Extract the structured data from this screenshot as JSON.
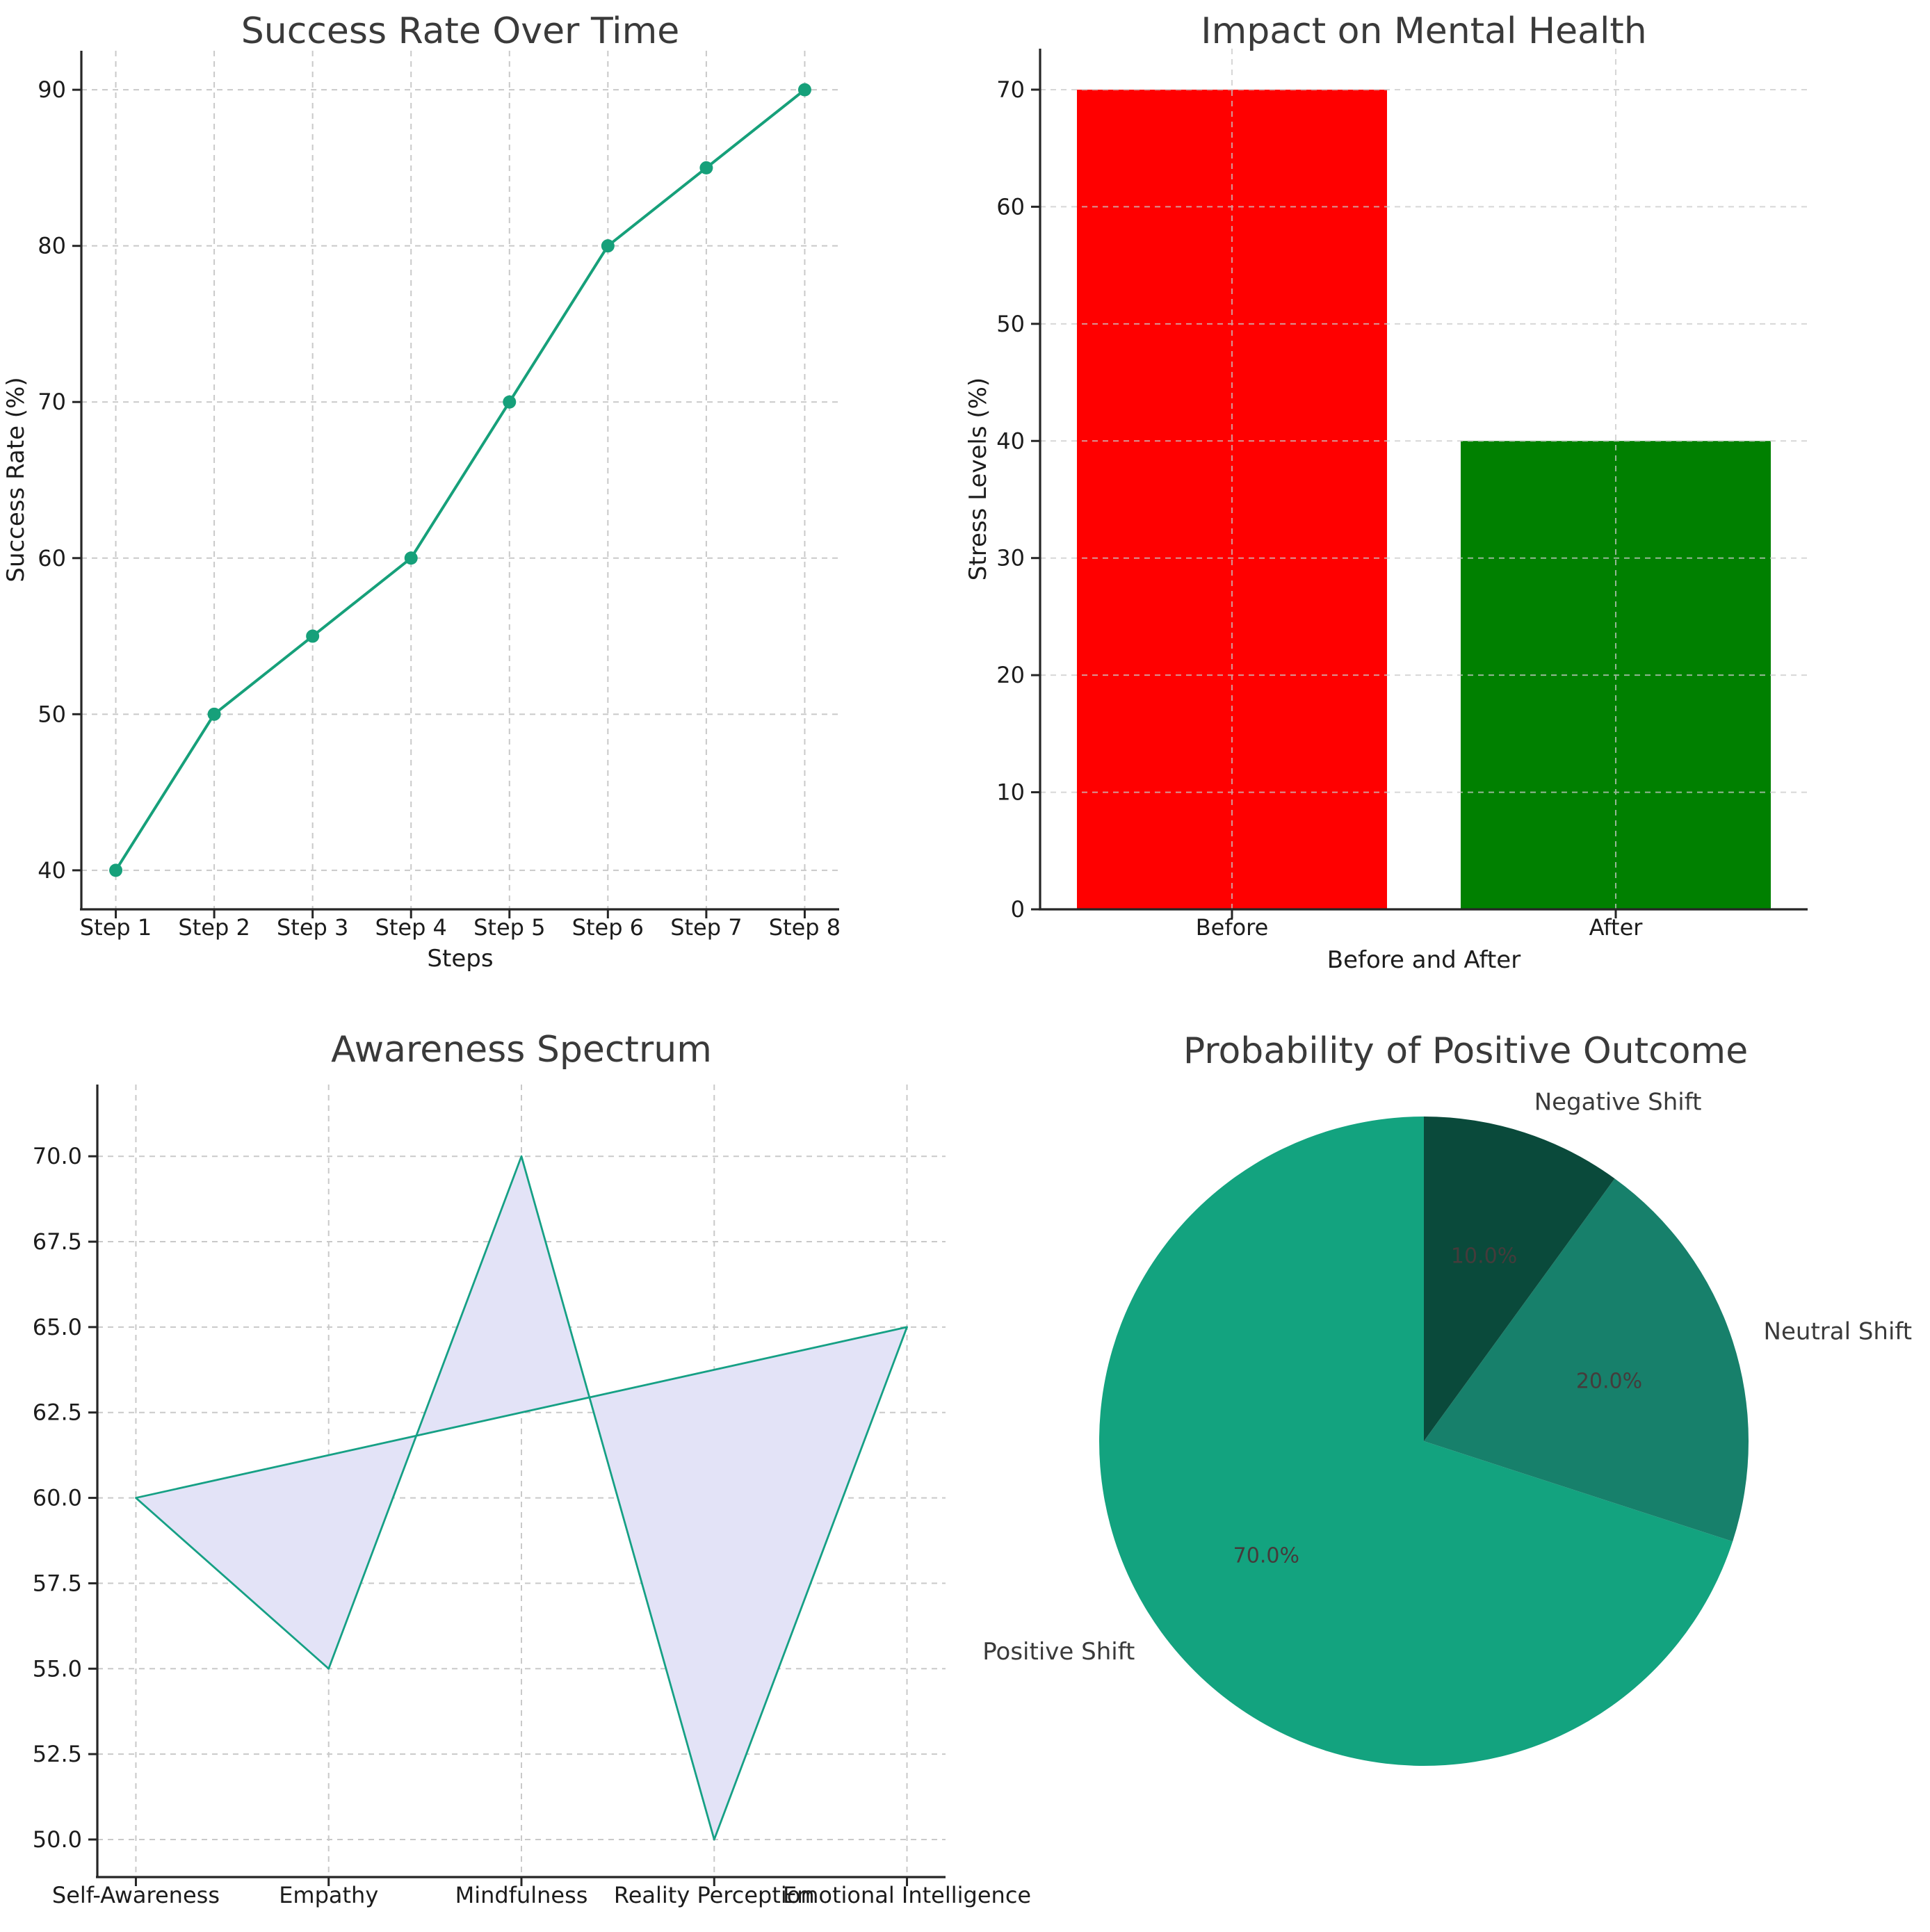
{
  "page": {
    "background": "#ffffff"
  },
  "chart_data": [
    {
      "type": "line",
      "title": "Success Rate Over Time",
      "xlabel": "Steps",
      "ylabel": "Success Rate (%)",
      "categories": [
        "Step 1",
        "Step 2",
        "Step 3",
        "Step 4",
        "Step 5",
        "Step 6",
        "Step 7",
        "Step 8"
      ],
      "values": [
        40,
        50,
        55,
        60,
        70,
        80,
        85,
        90
      ],
      "ylim": [
        37.5,
        92.5
      ],
      "yticks": [
        40,
        50,
        60,
        70,
        80,
        90
      ],
      "ytick_labels": [
        "40",
        "50",
        "60",
        "70",
        "80",
        "90"
      ],
      "line_color": "#16a07a",
      "marker": "circle",
      "grid": true,
      "legend": "none"
    },
    {
      "type": "bar",
      "title": "Impact on Mental Health",
      "xlabel": "Before and After",
      "ylabel": "Stress Levels (%)",
      "categories": [
        "Before",
        "After"
      ],
      "values": [
        70,
        40
      ],
      "bar_colors": [
        "#ff0000",
        "#008000"
      ],
      "ylim": [
        0,
        73.5
      ],
      "yticks": [
        0,
        10,
        20,
        30,
        40,
        50,
        60,
        70
      ],
      "ytick_labels": [
        "0",
        "10",
        "20",
        "30",
        "40",
        "50",
        "60",
        "70"
      ],
      "grid": true,
      "legend": "none"
    },
    {
      "type": "area",
      "title": "Awareness Spectrum",
      "xlabel": "",
      "ylabel": "",
      "categories": [
        "Self-Awareness",
        "Empathy",
        "Mindfulness",
        "Reality Perception",
        "Emotional Intelligence"
      ],
      "values": [
        60,
        55,
        70,
        50,
        65
      ],
      "ylim": [
        48.9,
        72.1
      ],
      "yticks": [
        50,
        52.5,
        55,
        57.5,
        60,
        62.5,
        65,
        67.5,
        70
      ],
      "ytick_labels": [
        "50.0",
        "52.5",
        "55.0",
        "57.5",
        "60.0",
        "62.5",
        "65.0",
        "67.5",
        "70.0"
      ],
      "fill_color": "#e3e3f7",
      "edge_color": "#16a085",
      "grid": true,
      "legend": "none"
    },
    {
      "type": "pie",
      "title": "Probability of Positive Outcome",
      "labels": [
        "Positive Shift",
        "Neutral Shift",
        "Negative Shift"
      ],
      "values": [
        70,
        20,
        10
      ],
      "pct_labels": [
        "70.0%",
        "20.0%",
        "10.0%"
      ],
      "colors": [
        "#13a37f",
        "#17806b",
        "#0a4a3b"
      ],
      "start_angle": 90,
      "counterclock": true,
      "legend": "none"
    }
  ]
}
